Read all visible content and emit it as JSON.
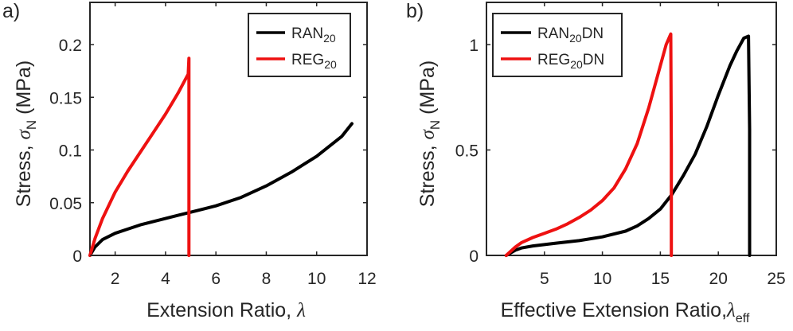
{
  "figure": {
    "panel_labels": [
      "a)",
      "b)"
    ]
  },
  "chart_data": [
    {
      "type": "line",
      "panel": "a)",
      "xlabel": {
        "text": "Extension Ratio, ",
        "symbol": "λ"
      },
      "ylabel": {
        "text": "Stress, ",
        "symbol": "σ",
        "sub": "N",
        "unit": " (MPa)"
      },
      "xlim": [
        1,
        12
      ],
      "ylim": [
        0,
        0.24
      ],
      "xticks": [
        2,
        4,
        6,
        8,
        10,
        12
      ],
      "xtick_labels": [
        "2",
        "4",
        "6",
        "8",
        "10",
        "12"
      ],
      "yticks": [
        0,
        0.05,
        0.1,
        0.15,
        0.2
      ],
      "ytick_labels": [
        "0",
        "0.05",
        "0.1",
        "0.15",
        "0.2"
      ],
      "grid": false,
      "legend_placement": "top-right",
      "series": [
        {
          "name": "RAN",
          "sub": "20",
          "suffix": "",
          "color": "#000000",
          "x": [
            1.0,
            1.2,
            1.5,
            2.0,
            2.5,
            3.0,
            3.5,
            4.0,
            4.5,
            5.0,
            6.0,
            7.0,
            8.0,
            9.0,
            10.0,
            11.0,
            11.4
          ],
          "y": [
            0.0,
            0.008,
            0.015,
            0.021,
            0.025,
            0.029,
            0.032,
            0.035,
            0.038,
            0.041,
            0.047,
            0.055,
            0.066,
            0.079,
            0.094,
            0.113,
            0.125
          ]
        },
        {
          "name": "REG",
          "sub": "20",
          "suffix": "",
          "color": "#ee1111",
          "x": [
            1.0,
            1.2,
            1.5,
            2.0,
            2.5,
            3.0,
            3.5,
            4.0,
            4.5,
            4.9,
            4.93,
            4.93
          ],
          "y": [
            0.0,
            0.016,
            0.035,
            0.06,
            0.08,
            0.098,
            0.116,
            0.134,
            0.154,
            0.172,
            0.187,
            0.0
          ]
        }
      ]
    },
    {
      "type": "line",
      "panel": "b)",
      "xlabel": {
        "text": "Effective Extension Ratio,",
        "symbol": "λ",
        "sub": "eff"
      },
      "ylabel": {
        "text": "Stress, ",
        "symbol": "σ",
        "sub": "N",
        "unit": " (MPa)"
      },
      "xlim": [
        0,
        25
      ],
      "ylim": [
        0,
        1.2
      ],
      "xticks": [
        5,
        10,
        15,
        20,
        25
      ],
      "xtick_labels": [
        "5",
        "10",
        "15",
        "20",
        "25"
      ],
      "yticks": [
        0,
        0.5,
        1
      ],
      "ytick_labels": [
        "0",
        "0.5",
        "1"
      ],
      "grid": false,
      "legend_placement": "top-left",
      "series": [
        {
          "name": "RAN",
          "sub": "20",
          "suffix": "DN",
          "color": "#000000",
          "x": [
            1.7,
            2.5,
            3,
            4,
            6,
            8,
            10,
            12,
            13,
            14,
            15,
            16,
            17,
            18,
            19,
            20,
            21,
            21.6,
            22.2,
            22.6,
            22.7,
            22.7
          ],
          "y": [
            0.0,
            0.025,
            0.035,
            0.045,
            0.058,
            0.07,
            0.088,
            0.115,
            0.14,
            0.175,
            0.22,
            0.29,
            0.38,
            0.48,
            0.61,
            0.76,
            0.9,
            0.97,
            1.03,
            1.04,
            0.6,
            0.0
          ]
        },
        {
          "name": "REG",
          "sub": "20",
          "suffix": "DN",
          "color": "#ee1111",
          "x": [
            1.7,
            2.5,
            3,
            4,
            5,
            6,
            7,
            8,
            9,
            10,
            11,
            12,
            13,
            14,
            15,
            15.5,
            15.9,
            15.95,
            15.95
          ],
          "y": [
            0.0,
            0.04,
            0.06,
            0.085,
            0.105,
            0.125,
            0.15,
            0.18,
            0.215,
            0.26,
            0.32,
            0.41,
            0.53,
            0.7,
            0.9,
            1.0,
            1.05,
            0.5,
            0.0
          ]
        }
      ]
    }
  ]
}
